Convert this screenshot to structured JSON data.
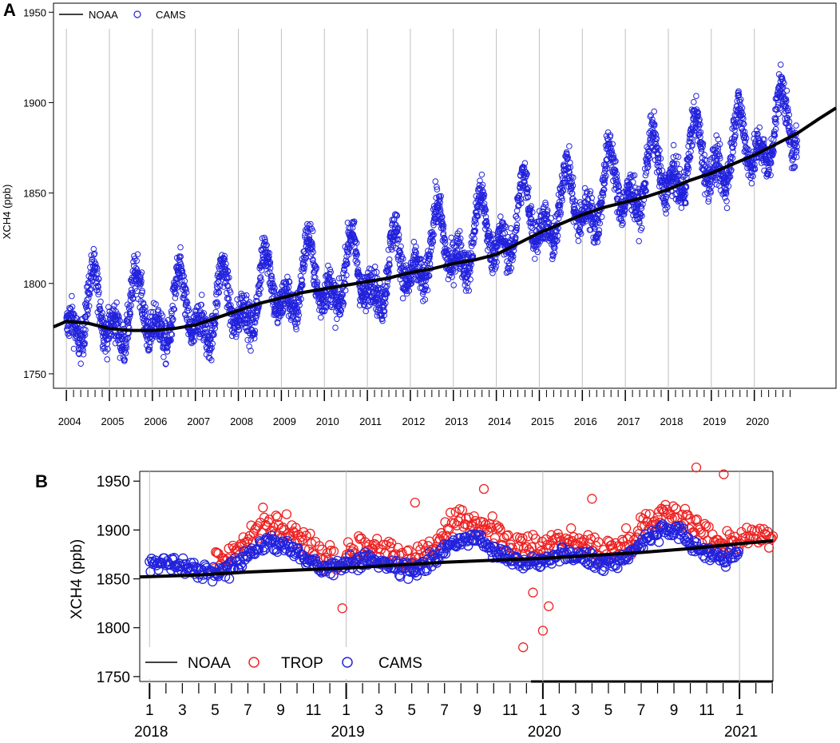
{
  "chart_data": [
    {
      "panel": "A",
      "type": "scatter",
      "xlabel": "",
      "ylabel": "XCH4 (ppb)",
      "xlim": [
        2003.7,
        2021.9
      ],
      "ylim": [
        1742,
        1955
      ],
      "y_ticks": [
        "1750",
        "1800",
        "1850",
        "1900",
        "1950"
      ],
      "x_ticks": [
        "2004",
        "2005",
        "2006",
        "2007",
        "2008",
        "2009",
        "2010",
        "2011",
        "2012",
        "2013",
        "2014",
        "2015",
        "2016",
        "2017",
        "2018",
        "2019",
        "2020"
      ],
      "grid_x": [
        2004,
        2005,
        2006,
        2007,
        2008,
        2009,
        2010,
        2011,
        2012,
        2013,
        2014,
        2015,
        2016,
        2017,
        2018,
        2019,
        2020
      ],
      "legend": {
        "position": "top-left",
        "entries": [
          "NOAA",
          "CAMS"
        ]
      },
      "series": [
        {
          "name": "NOAA",
          "style": "line",
          "color": "#000000",
          "x": [
            2003.7,
            2004.0,
            2004.5,
            2005.0,
            2005.5,
            2006.0,
            2006.5,
            2007.0,
            2007.5,
            2008.0,
            2008.5,
            2009.0,
            2009.5,
            2010.0,
            2010.5,
            2011.0,
            2011.5,
            2012.0,
            2012.5,
            2013.0,
            2013.5,
            2014.0,
            2014.5,
            2015.0,
            2015.5,
            2016.0,
            2016.5,
            2017.0,
            2017.5,
            2018.0,
            2018.5,
            2019.0,
            2019.5,
            2020.0,
            2020.5,
            2021.0,
            2021.5,
            2021.9
          ],
          "values": [
            1776,
            1779,
            1778,
            1775,
            1774,
            1774,
            1775,
            1777,
            1781,
            1785,
            1789,
            1792,
            1795,
            1797,
            1799,
            1801,
            1803,
            1806,
            1808,
            1811,
            1813,
            1816,
            1822,
            1828,
            1833,
            1838,
            1842,
            1845,
            1848,
            1852,
            1857,
            1861,
            1866,
            1871,
            1877,
            1883,
            1891,
            1897
          ]
        },
        {
          "name": "CAMS",
          "style": "open-circle",
          "color": "#2222dd",
          "x_start": 2004.0,
          "x_end": 2021.0,
          "seasonal_cycle": {
            "peak_month": "August-September",
            "amplitude_ppb": 28,
            "scatter_ppb": 10
          },
          "annual_mean": {
            "years": [
              2004,
              2005,
              2006,
              2007,
              2008,
              2009,
              2010,
              2011,
              2012,
              2013,
              2014,
              2015,
              2016,
              2017,
              2018,
              2019,
              2020
            ],
            "values": [
              1783,
              1782,
              1782,
              1784,
              1793,
              1800,
              1803,
              1804,
              1818,
              1823,
              1833,
              1840,
              1849,
              1857,
              1867,
              1871,
              1884
            ]
          }
        }
      ]
    },
    {
      "panel": "B",
      "type": "scatter",
      "xlabel": "",
      "ylabel": "XCH4 (ppb)",
      "xlim": [
        2017.95,
        2021.17
      ],
      "ylim": [
        1745,
        1960
      ],
      "y_ticks": [
        "1750",
        "1800",
        "1850",
        "1900",
        "1950"
      ],
      "x_month_ticks": [
        "1",
        "3",
        "5",
        "7",
        "9",
        "11",
        "1",
        "3",
        "5",
        "7",
        "9",
        "11",
        "1",
        "3",
        "5",
        "7",
        "9",
        "11",
        "1"
      ],
      "x_year_labels": [
        "2018",
        "2019",
        "2020",
        "2021"
      ],
      "grid_x": [
        2018,
        2019,
        2020,
        2021
      ],
      "legend": {
        "position": "bottom-left",
        "entries": [
          "NOAA",
          "TROP",
          "CAMS"
        ]
      },
      "series": [
        {
          "name": "NOAA",
          "style": "line",
          "color": "#000000",
          "x": [
            2017.95,
            2018.25,
            2018.5,
            2018.75,
            2019.0,
            2019.25,
            2019.5,
            2019.75,
            2020.0,
            2020.25,
            2020.5,
            2020.75,
            2021.0,
            2021.17
          ],
          "values": [
            1852,
            1854,
            1857,
            1859,
            1861,
            1864,
            1867,
            1869,
            1871,
            1874,
            1877,
            1881,
            1886,
            1889
          ]
        },
        {
          "name": "TROP",
          "style": "open-circle",
          "color": "#ee2222",
          "x_start": 2018.33,
          "x_end": 2021.17,
          "x_gap": [
            2018.95,
            2018.99
          ],
          "seasonal_cycle": {
            "peak_month": "August-September",
            "amplitude_ppb": 22,
            "scatter_ppb": 12
          },
          "offset_vs_cams_ppb": 15,
          "outliers": [
            {
              "x": 2019.9,
              "y": 1780
            },
            {
              "x": 2020.0,
              "y": 1797
            },
            {
              "x": 2020.03,
              "y": 1822
            },
            {
              "x": 2018.98,
              "y": 1820
            },
            {
              "x": 2019.95,
              "y": 1836
            },
            {
              "x": 2020.78,
              "y": 1964
            },
            {
              "x": 2020.92,
              "y": 1957
            },
            {
              "x": 2019.35,
              "y": 1928
            },
            {
              "x": 2020.25,
              "y": 1932
            },
            {
              "x": 2019.7,
              "y": 1942
            }
          ]
        },
        {
          "name": "CAMS",
          "style": "open-circle",
          "color": "#2222dd",
          "x_start": 2018.0,
          "x_end": 2021.0,
          "seasonal_cycle": {
            "peak_month": "August-September",
            "amplitude_ppb": 22,
            "scatter_ppb": 8
          },
          "annual_mean": {
            "years": [
              2018,
              2019,
              2020
            ],
            "values": [
              1868,
              1872,
              1880
            ]
          }
        }
      ]
    }
  ],
  "labels": {
    "panel_a": "A",
    "panel_b": "B",
    "a_ylabel": "XCH4 (ppb)",
    "b_ylabel": "XCH4 (ppb)",
    "a_legend_noaa": "NOAA",
    "a_legend_cams": "CAMS",
    "b_legend_noaa": "NOAA",
    "b_legend_trop": "TROP",
    "b_legend_cams": "CAMS"
  },
  "colors": {
    "cams": "#2222dd",
    "trop": "#ee2222",
    "noaa": "#000000",
    "grid": "#bfbfbf"
  }
}
